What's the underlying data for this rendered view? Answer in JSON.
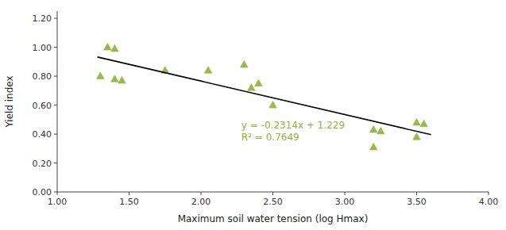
{
  "chart_data": {
    "type": "scatter",
    "xlabel": "Maximum soil water tension (log Hmax)",
    "ylabel": "Yield index",
    "series": [
      {
        "type": "scatter",
        "color": "#8db33a",
        "marker": "triangle",
        "x": [
          1.3,
          1.35,
          1.4,
          1.4,
          1.45,
          1.75,
          2.05,
          2.3,
          2.35,
          2.4,
          2.5,
          3.2,
          3.2,
          3.25,
          3.5,
          3.5,
          3.55
        ],
        "values": [
          0.8,
          1.0,
          0.99,
          0.78,
          0.77,
          0.84,
          0.84,
          0.88,
          0.72,
          0.75,
          0.6,
          0.43,
          0.31,
          0.42,
          0.48,
          0.38,
          0.47
        ]
      },
      {
        "type": "line",
        "color": "#000000",
        "line_style": "solid",
        "x": [
          1.28,
          3.6
        ],
        "values": [
          0.932808,
          0.39596
        ]
      }
    ],
    "annotations": [
      "y = -0.2314x + 1.229",
      "R² = 0.7649"
    ],
    "xlim": [
      1.0,
      4.0
    ],
    "ylim": [
      0.0,
      1.25
    ],
    "xticks": [
      {
        "value": 1.0,
        "label": "1.00"
      },
      {
        "value": 1.5,
        "label": "1.50"
      },
      {
        "value": 2.0,
        "label": "2.00"
      },
      {
        "value": 2.5,
        "label": "2.50"
      },
      {
        "value": 3.0,
        "label": "3.00"
      },
      {
        "value": 3.5,
        "label": "3.50"
      },
      {
        "value": 4.0,
        "label": "4.00"
      }
    ],
    "yticks": [
      {
        "value": 0.0,
        "label": "0.00"
      },
      {
        "value": 0.2,
        "label": "0.20"
      },
      {
        "value": 0.4,
        "label": "0.40"
      },
      {
        "value": 0.6,
        "label": "0.60"
      },
      {
        "value": 0.8,
        "label": "0.80"
      },
      {
        "value": 1.0,
        "label": "1.00"
      },
      {
        "value": 1.2,
        "label": "1.20"
      }
    ],
    "grid": false
  }
}
